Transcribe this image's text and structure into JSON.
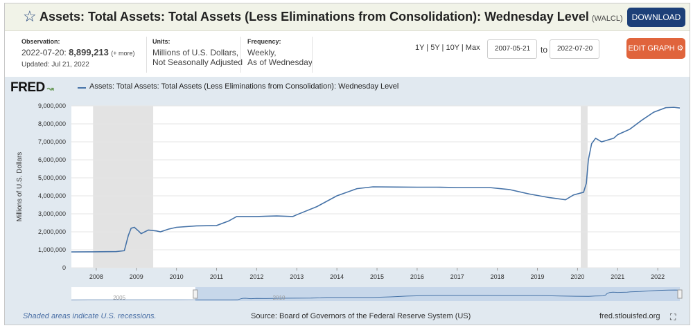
{
  "header": {
    "title": "Assets: Total Assets: Total Assets (Less Eliminations from Consolidation): Wednesday Level",
    "series_code": "(WALCL)",
    "download_label": "DOWNLOAD",
    "edit_graph_label": "EDIT GRAPH"
  },
  "meta": {
    "observation_label": "Observation:",
    "observation_date": "2022-07-20:",
    "observation_value": "8,899,213",
    "observation_more": "(+ more)",
    "updated": "Updated: Jul 21, 2022",
    "units_label": "Units:",
    "units_line1": "Millions of U.S. Dollars,",
    "units_line2": "Not Seasonally Adjusted",
    "frequency_label": "Frequency:",
    "frequency_line1": "Weekly,",
    "frequency_line2": "As of Wednesday"
  },
  "controls": {
    "ranges": "1Y | 5Y | 10Y | Max",
    "start_date": "2007-05-21",
    "to_label": "to",
    "end_date": "2022-07-20"
  },
  "legend": {
    "logo": "FRED",
    "series_name": "Assets: Total Assets: Total Assets (Less Eliminations from Consolidation): Wednesday Level"
  },
  "footer": {
    "recession_note": "Shaded areas indicate U.S. recessions.",
    "source": "Source: Board of Governors of the Federal Reserve System (US)",
    "site": "fred.stlouisfed.org"
  },
  "colors": {
    "line": "#4572a7",
    "recession": "#e3e3e3",
    "panel": "#e1e9f0",
    "download": "#1c3f78",
    "edit": "#e0643c"
  },
  "chart_data": {
    "type": "line",
    "ylabel": "Millions of U.S. Dollars",
    "ylim": [
      0,
      9000000
    ],
    "yticks": [
      0,
      1000000,
      2000000,
      3000000,
      4000000,
      5000000,
      6000000,
      7000000,
      8000000,
      9000000
    ],
    "ytick_labels": [
      "0",
      "1,000,000",
      "2,000,000",
      "3,000,000",
      "4,000,000",
      "5,000,000",
      "6,000,000",
      "7,000,000",
      "8,000,000",
      "9,000,000"
    ],
    "xlim": [
      2007.38,
      2022.55
    ],
    "xticks": [
      2008,
      2009,
      2010,
      2011,
      2012,
      2013,
      2014,
      2015,
      2016,
      2017,
      2018,
      2019,
      2020,
      2021,
      2022
    ],
    "xtick_labels": [
      "2008",
      "2009",
      "2010",
      "2011",
      "2012",
      "2013",
      "2014",
      "2015",
      "2016",
      "2017",
      "2018",
      "2019",
      "2020",
      "2021",
      "2022"
    ],
    "grid": true,
    "recessions": [
      [
        2007.92,
        2009.42
      ],
      [
        2020.08,
        2020.25
      ]
    ],
    "navigator_labels": [
      "2005",
      "2010"
    ],
    "series": [
      {
        "points": [
          [
            2007.38,
            880000
          ],
          [
            2007.9,
            890000
          ],
          [
            2008.5,
            900000
          ],
          [
            2008.7,
            950000
          ],
          [
            2008.8,
            1800000
          ],
          [
            2008.87,
            2200000
          ],
          [
            2008.95,
            2250000
          ],
          [
            2009.05,
            2050000
          ],
          [
            2009.12,
            1900000
          ],
          [
            2009.3,
            2100000
          ],
          [
            2009.5,
            2050000
          ],
          [
            2009.6,
            2000000
          ],
          [
            2009.8,
            2150000
          ],
          [
            2010.0,
            2250000
          ],
          [
            2010.5,
            2330000
          ],
          [
            2011.0,
            2350000
          ],
          [
            2011.3,
            2600000
          ],
          [
            2011.5,
            2850000
          ],
          [
            2012.0,
            2850000
          ],
          [
            2012.5,
            2880000
          ],
          [
            2012.9,
            2850000
          ],
          [
            2013.0,
            2950000
          ],
          [
            2013.5,
            3400000
          ],
          [
            2014.0,
            4000000
          ],
          [
            2014.5,
            4400000
          ],
          [
            2014.9,
            4500000
          ],
          [
            2015.5,
            4490000
          ],
          [
            2016.0,
            4480000
          ],
          [
            2016.5,
            4480000
          ],
          [
            2017.0,
            4460000
          ],
          [
            2017.5,
            4460000
          ],
          [
            2017.8,
            4460000
          ],
          [
            2018.3,
            4350000
          ],
          [
            2018.8,
            4100000
          ],
          [
            2019.3,
            3900000
          ],
          [
            2019.7,
            3780000
          ],
          [
            2019.9,
            4050000
          ],
          [
            2020.15,
            4200000
          ],
          [
            2020.22,
            4700000
          ],
          [
            2020.27,
            6000000
          ],
          [
            2020.35,
            6900000
          ],
          [
            2020.45,
            7200000
          ],
          [
            2020.6,
            7000000
          ],
          [
            2020.9,
            7200000
          ],
          [
            2021.0,
            7400000
          ],
          [
            2021.3,
            7700000
          ],
          [
            2021.6,
            8200000
          ],
          [
            2021.9,
            8650000
          ],
          [
            2022.2,
            8900000
          ],
          [
            2022.4,
            8920000
          ],
          [
            2022.55,
            8880000
          ]
        ]
      }
    ]
  }
}
